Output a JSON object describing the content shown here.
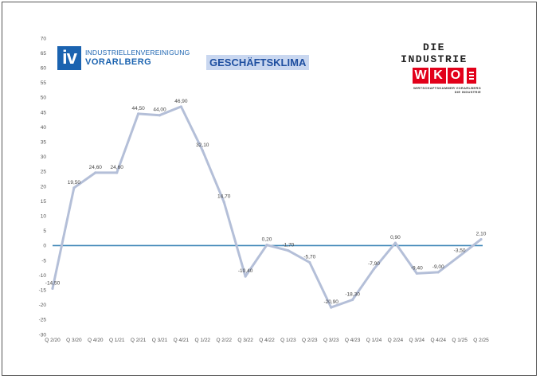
{
  "logos": {
    "iv": {
      "mark": "iv",
      "line1": "INDUSTRIELLENVEREINIGUNG",
      "line2": "VORARLBERG",
      "color": "#1b63b0"
    },
    "wko": {
      "heading": "DIE INDUSTRIE",
      "letters": [
        "W",
        "K",
        "O"
      ],
      "sub1": "WIRTSCHAFTSKAMMER VORARLBERG",
      "sub2": "DIE INDUSTRIE",
      "color": "#e2001a"
    }
  },
  "chart_data": {
    "type": "line",
    "title": "GESCHÄFTSKLIMA",
    "categories": [
      "Q 2/20",
      "Q 3/20",
      "Q 4/20",
      "Q 1/21",
      "Q 2/21",
      "Q 3/21",
      "Q 4/21",
      "Q 1/22",
      "Q 2/22",
      "Q 3/22",
      "Q 4/22",
      "Q 1/23",
      "Q 2/23",
      "Q 3/23",
      "Q 4/23",
      "Q 1/24",
      "Q 2/24",
      "Q 3/24",
      "Q 4/24",
      "Q 1/25",
      "Q 2/25"
    ],
    "values": [
      -14.5,
      19.5,
      24.6,
      24.6,
      44.5,
      44.0,
      46.9,
      32.1,
      14.7,
      -10.4,
      0.2,
      -1.7,
      -5.7,
      -20.9,
      -18.3,
      -7.9,
      0.9,
      -9.4,
      -9.0,
      -3.5,
      2.1
    ],
    "data_labels": [
      "-14,50",
      "19,50",
      "24,60",
      "24,60",
      "44,50",
      "44,00",
      "46,90",
      "32,10",
      "14,70",
      "-10,40",
      "0,20",
      "-1,70",
      "-5,70",
      "-20,90",
      "-18,30",
      "-7,90",
      "0,90",
      "-9,40",
      "-9,00",
      "-3,50",
      "2,10"
    ],
    "ylim": [
      -30,
      70
    ],
    "ytick_step": 5,
    "grid": false,
    "zero_line": true,
    "line_color": "#b4bfd8",
    "zero_line_color": "#3f86b8"
  }
}
